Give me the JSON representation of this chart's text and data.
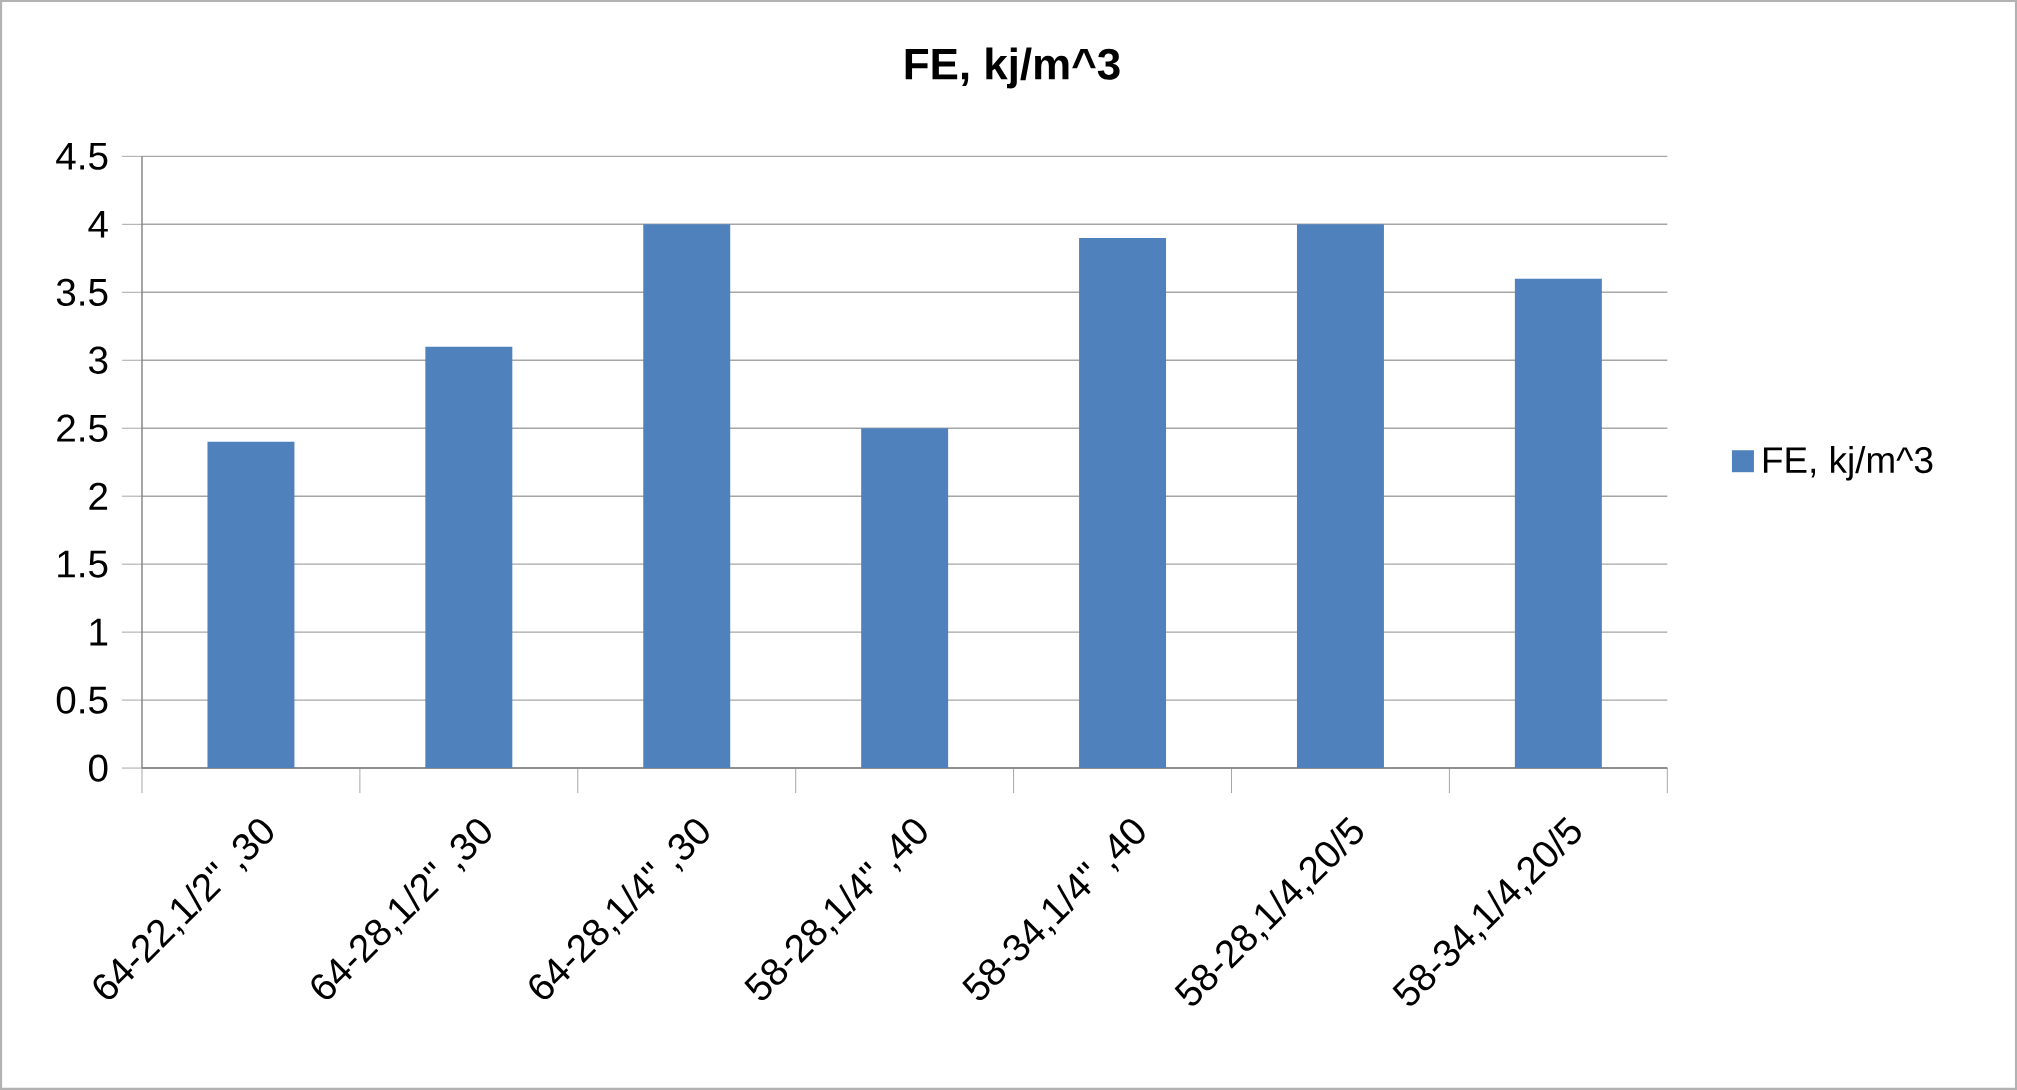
{
  "chart_data": {
    "type": "bar",
    "title": "FE, kj/m^3",
    "categories": [
      "64-22,1/2\" ,30",
      "64-28,1/2\" ,30",
      "64-28,1/4\" ,30",
      "58-28,1/4\" ,40",
      "58-34,1/4\" ,40",
      "58-28,1/4,20/5",
      "58-34,1/4,20/5"
    ],
    "series": [
      {
        "name": "FE, kj/m^3",
        "color": "#4f81bd",
        "values": [
          2.4,
          3.1,
          4.0,
          2.5,
          3.9,
          4.0,
          3.6
        ]
      }
    ],
    "ylim": [
      0,
      4.5
    ],
    "yticks": [
      0,
      0.5,
      1,
      1.5,
      2,
      2.5,
      3,
      3.5,
      4,
      4.5
    ],
    "grid": "y",
    "legend": "right"
  }
}
